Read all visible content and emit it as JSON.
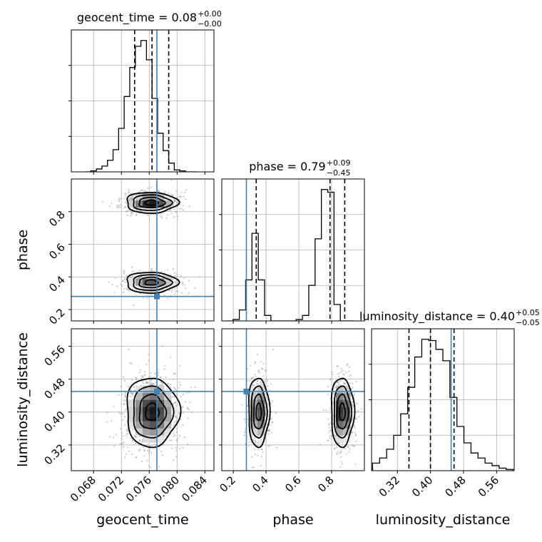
{
  "chart_data": {
    "type": "corner",
    "parameters": [
      {
        "name": "geocent_time",
        "label": "geocent_time",
        "range": [
          0.0648,
          0.0853
        ],
        "ticks": [
          0.068,
          0.072,
          0.076,
          0.08,
          0.084
        ],
        "tick_labels": [
          "0.068",
          "0.072",
          "0.076",
          "0.080",
          "0.084"
        ],
        "title_base": "geocent_time = 0.08",
        "title_sup": "+0.00",
        "title_sub": "−0.00",
        "quantiles": [
          0.0739,
          0.0764,
          0.0788
        ],
        "truth": 0.0771,
        "hist": {
          "edges_start": 0.0668,
          "bin_width": 0.0008,
          "counts": [
            0,
            1,
            3,
            6,
            12,
            23,
            45,
            78,
            108,
            130,
            136,
            116,
            76,
            40,
            22,
            9,
            2,
            1,
            0,
            0
          ]
        }
      },
      {
        "name": "phase",
        "label": "phase",
        "range": [
          0.13,
          1.0
        ],
        "ticks": [
          0.2,
          0.4,
          0.6,
          0.8
        ],
        "tick_labels": [
          "0.2",
          "0.4",
          "0.6",
          "0.8"
        ],
        "title_base": "phase = 0.79",
        "title_sup": "+0.09",
        "title_sub": "−0.45",
        "quantiles": [
          0.34,
          0.79,
          0.88
        ],
        "truth": 0.28,
        "hist": {
          "edges_start": 0.16,
          "bin_width": 0.0385,
          "counts": [
            0,
            1,
            8,
            30,
            64,
            30,
            4,
            0,
            0,
            0,
            0,
            1,
            4,
            26,
            60,
            96,
            94,
            12,
            0,
            0
          ]
        }
      },
      {
        "name": "luminosity_distance",
        "label": "luminosity_distance",
        "range": [
          0.2575,
          0.6025
        ],
        "ticks": [
          0.32,
          0.4,
          0.48,
          0.56
        ],
        "tick_labels": [
          "0.32",
          "0.40",
          "0.48",
          "0.56"
        ],
        "title_base": "luminosity_distance = 0.40",
        "title_sup": "+0.05",
        "title_sub": "−0.05",
        "quantiles": [
          0.348,
          0.4,
          0.457
        ],
        "truth": 0.45,
        "hist": {
          "edges_start": 0.26,
          "bin_width": 0.017,
          "counts": [
            6,
            10,
            17,
            28,
            45,
            66,
            90,
            104,
            103,
            96,
            87,
            58,
            35,
            22,
            14,
            10,
            6,
            4,
            2,
            1
          ]
        }
      }
    ],
    "marginal_2d": [
      {
        "x": "geocent_time",
        "y": "phase",
        "modes": [
          {
            "x_center": 0.0763,
            "y_center": 0.855,
            "x_sigma": 0.00185,
            "y_sigma": 0.032,
            "weight": 1.0
          },
          {
            "x_center": 0.0763,
            "y_center": 0.365,
            "x_sigma": 0.00185,
            "y_sigma": 0.032,
            "weight": 0.78
          }
        ]
      },
      {
        "x": "geocent_time",
        "y": "luminosity_distance",
        "modes": [
          {
            "x_center": 0.0764,
            "y_center": 0.4,
            "x_sigma": 0.0019,
            "y_sigma": 0.042,
            "weight": 1.0
          }
        ]
      },
      {
        "x": "phase",
        "y": "luminosity_distance",
        "modes": [
          {
            "x_center": 0.355,
            "y_center": 0.4,
            "x_sigma": 0.032,
            "y_sigma": 0.042,
            "weight": 0.85
          },
          {
            "x_center": 0.865,
            "y_center": 0.4,
            "x_sigma": 0.035,
            "y_sigma": 0.042,
            "weight": 1.0
          }
        ]
      }
    ],
    "truth_color": "#4682b4",
    "contour_color": "#000000",
    "grid": true
  }
}
